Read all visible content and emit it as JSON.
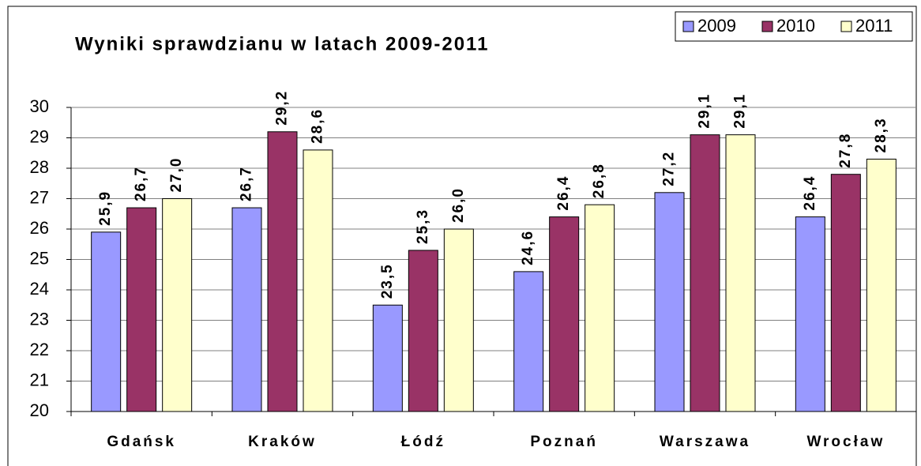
{
  "chart_data": {
    "type": "bar",
    "title": "Wyniki sprawdzianu w latach 2009-2011",
    "categories": [
      "Gdańsk",
      "Kraków",
      "Łódź",
      "Poznań",
      "Warszawa",
      "Wrocław"
    ],
    "series": [
      {
        "name": "2009",
        "color": "#9999ff",
        "values": [
          25.9,
          26.7,
          23.5,
          24.6,
          27.2,
          26.4
        ],
        "value_labels": [
          "25,9",
          "26,7",
          "23,5",
          "24,6",
          "27,2",
          "26,4"
        ]
      },
      {
        "name": "2010",
        "color": "#993366",
        "values": [
          26.7,
          29.2,
          25.3,
          26.4,
          29.1,
          27.8
        ],
        "value_labels": [
          "26,7",
          "29,2",
          "25,3",
          "26,4",
          "29,1",
          "27,8"
        ]
      },
      {
        "name": "2011",
        "color": "#ffffcc",
        "values": [
          27.0,
          28.6,
          26.0,
          26.8,
          29.1,
          28.3
        ],
        "value_labels": [
          "27,0",
          "28,6",
          "26,0",
          "26,8",
          "29,1",
          "28,3"
        ]
      }
    ],
    "ylim": [
      20,
      30
    ],
    "yticks": [
      20,
      21,
      22,
      23,
      24,
      25,
      26,
      27,
      28,
      29,
      30
    ],
    "grid": true,
    "legend": "top-right"
  }
}
